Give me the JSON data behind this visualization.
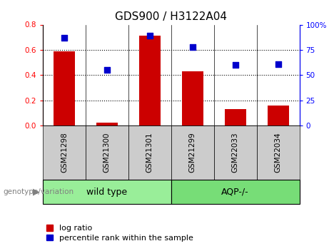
{
  "title": "GDS900 / H3122A04",
  "categories": [
    "GSM21298",
    "GSM21300",
    "GSM21301",
    "GSM21299",
    "GSM22033",
    "GSM22034"
  ],
  "log_ratio": [
    0.59,
    0.02,
    0.71,
    0.43,
    0.13,
    0.16
  ],
  "percentile_rank": [
    87,
    55,
    89,
    78,
    60,
    61
  ],
  "groups": [
    {
      "label": "wild type",
      "indices": [
        0,
        1,
        2
      ],
      "color": "#99ee99"
    },
    {
      "label": "AQP-/-",
      "indices": [
        3,
        4,
        5
      ],
      "color": "#77dd77"
    }
  ],
  "group_label": "genotype/variation",
  "left_ylim": [
    0,
    0.8
  ],
  "right_ylim": [
    0,
    100
  ],
  "left_yticks": [
    0,
    0.2,
    0.4,
    0.6,
    0.8
  ],
  "right_yticks": [
    0,
    25,
    50,
    75,
    100
  ],
  "right_yticklabels": [
    "0",
    "25",
    "50",
    "75",
    "100%"
  ],
  "bar_color": "#cc0000",
  "dot_color": "#0000cc",
  "bar_width": 0.5,
  "bg_color": "#ffffff",
  "label_cell_color": "#cccccc",
  "title_fontsize": 11,
  "tick_fontsize": 7.5,
  "legend_fontsize": 8
}
